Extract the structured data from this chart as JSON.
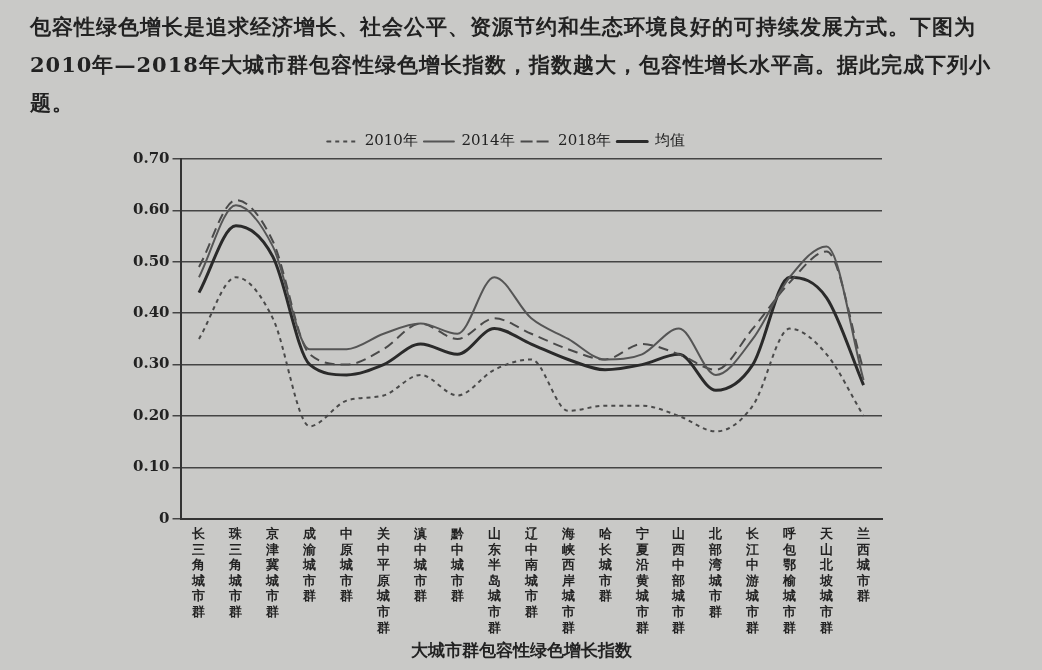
{
  "chart_data": {
    "type": "line",
    "title": "大城市群包容性绿色增长指数",
    "annotations": [
      "包容性绿色增长是追求经济增长、社会公平、资源节约和生态环境良好的可持续发展方式。下图为2010年—2018年大城市群包容性绿色增长指数，指数越大，包容性增长水平高。据此完成下列小题。"
    ],
    "categories": [
      "长三角城市群",
      "珠三角城市群",
      "京津冀城市群",
      "成渝城市群",
      "中原城市群",
      "关中平原城市群",
      "滇中城市群",
      "黔中城市群",
      "山东半岛城市群",
      "辽中南城市群",
      "海峡西岸城市群",
      "哈长城市群",
      "宁夏沿黄城市群",
      "山西中部城市群",
      "北部湾城市群",
      "长江中游城市群",
      "呼包鄂榆城市群",
      "天山北坡城市群",
      "兰西城市群"
    ],
    "series": [
      {
        "name": "2010年",
        "color": "#4a4a4a",
        "line_style": "dotted",
        "values": [
          0.35,
          0.47,
          0.39,
          0.18,
          0.23,
          0.24,
          0.28,
          0.24,
          0.29,
          0.31,
          0.21,
          0.22,
          0.22,
          0.2,
          0.17,
          0.22,
          0.37,
          0.32,
          0.2
        ]
      },
      {
        "name": "2014年",
        "color": "#555555",
        "line_style": "solid",
        "values": [
          0.47,
          0.61,
          0.53,
          0.33,
          0.33,
          0.36,
          0.38,
          0.36,
          0.47,
          0.39,
          0.35,
          0.31,
          0.32,
          0.37,
          0.28,
          0.35,
          0.47,
          0.53,
          0.27
        ]
      },
      {
        "name": "2018年",
        "color": "#4a4a4a",
        "line_style": "dashed",
        "values": [
          0.49,
          0.62,
          0.54,
          0.32,
          0.3,
          0.33,
          0.38,
          0.35,
          0.39,
          0.36,
          0.33,
          0.31,
          0.34,
          0.32,
          0.29,
          0.37,
          0.46,
          0.52,
          0.29
        ]
      },
      {
        "name": "均值",
        "color": "#2a2a2a",
        "line_style": "solid",
        "values": [
          0.44,
          0.57,
          0.51,
          0.3,
          0.28,
          0.3,
          0.34,
          0.32,
          0.37,
          0.34,
          0.31,
          0.29,
          0.3,
          0.32,
          0.25,
          0.3,
          0.47,
          0.43,
          0.26
        ]
      }
    ],
    "ylim": [
      0,
      0.7
    ],
    "yticks": [
      0,
      {
        "value": 0.1,
        "label": "0.10"
      },
      {
        "value": 0.2,
        "label": "0.20"
      },
      {
        "value": 0.3,
        "label": "0.30"
      },
      {
        "value": 0.4,
        "label": "0.40"
      },
      {
        "value": 0.5,
        "label": "0.50"
      },
      {
        "value": 0.6,
        "label": "0.60"
      },
      {
        "value": 0.7,
        "label": "0.70"
      }
    ],
    "grid": "y",
    "legend": "top",
    "marker": "none"
  }
}
